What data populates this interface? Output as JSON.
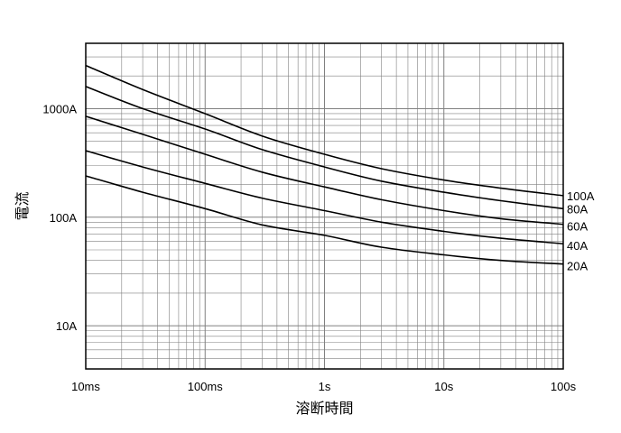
{
  "chart_data": {
    "type": "line",
    "title": "",
    "xlabel": "溶断時間",
    "ylabel": "電流",
    "x_scale": "log",
    "y_scale": "log",
    "x_unit": "s",
    "y_unit": "A",
    "xlim": [
      0.01,
      100
    ],
    "ylim": [
      4,
      4000
    ],
    "grid": true,
    "legend": "inline labels at right end of each curve",
    "x_ticks": [
      {
        "value": 0.01,
        "label": "10ms"
      },
      {
        "value": 0.1,
        "label": "100ms"
      },
      {
        "value": 1,
        "label": "1s"
      },
      {
        "value": 10,
        "label": "10s"
      },
      {
        "value": 100,
        "label": "100s"
      }
    ],
    "y_ticks": [
      {
        "value": 10,
        "label": "10A"
      },
      {
        "value": 100,
        "label": "100A"
      },
      {
        "value": 1000,
        "label": "1000A"
      }
    ],
    "x": [
      0.01,
      0.03,
      0.1,
      0.3,
      1,
      3,
      10,
      30,
      100
    ],
    "series": [
      {
        "name": "100A",
        "values": [
          2500,
          1500,
          900,
          560,
          380,
          280,
          220,
          185,
          158
        ]
      },
      {
        "name": "80A",
        "values": [
          1600,
          1000,
          650,
          420,
          290,
          215,
          170,
          142,
          120
        ]
      },
      {
        "name": "60A",
        "values": [
          850,
          580,
          380,
          260,
          190,
          145,
          115,
          97,
          86
        ]
      },
      {
        "name": "40A",
        "values": [
          410,
          290,
          205,
          150,
          115,
          90,
          74,
          64,
          57
        ]
      },
      {
        "name": "20A",
        "values": [
          240,
          170,
          120,
          85,
          68,
          53,
          45,
          40,
          37
        ]
      }
    ],
    "line_color": "#000000",
    "grid_color": "#808080"
  }
}
